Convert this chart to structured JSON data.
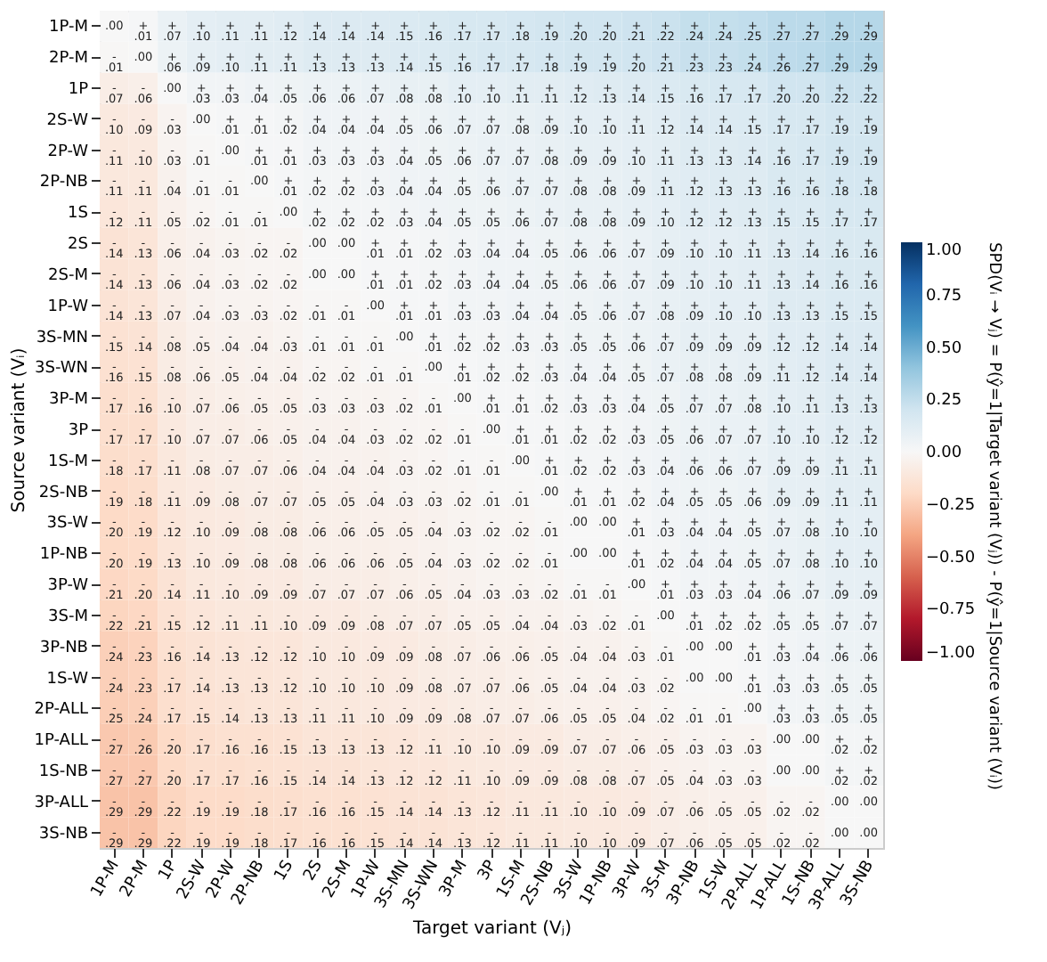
{
  "chart_data": {
    "type": "heatmap",
    "xlabel": "Target variant (Vⱼ)",
    "ylabel": "Source variant (Vᵢ)",
    "clabel": "SPD(Vᵢ → Vⱼ) = P(ŷ=1|Target variant (Vⱼ)) - P(ŷ=1|Source variant (Vᵢ))",
    "categories": [
      "1P-M",
      "2P-M",
      "1P",
      "2S-W",
      "2P-W",
      "2P-NB",
      "1S",
      "2S",
      "2S-M",
      "1P-W",
      "3S-MN",
      "3S-WN",
      "3P-M",
      "3P",
      "1S-M",
      "2S-NB",
      "3S-W",
      "1P-NB",
      "3P-W",
      "3S-M",
      "3P-NB",
      "1S-W",
      "2P-ALL",
      "1P-ALL",
      "1S-NB",
      "3P-ALL",
      "3S-NB"
    ],
    "y_categories": [
      "1P-M",
      "2P-M",
      "1P",
      "2S-W",
      "2P-W",
      "2P-NB",
      "1S",
      "2S",
      "2S-M",
      "1P-W",
      "3S-MN",
      "3S-WN",
      "3P-M",
      "3P",
      "1S-M",
      "2S-NB",
      "3S-W",
      "1P-NB",
      "3P-W",
      "3S-M",
      "3P-NB",
      "1S-W",
      "2P-ALL",
      "1P-ALL",
      "1S-NB",
      "3P-ALL",
      "3S-NB"
    ],
    "cells": [
      [
        0.0,
        0.01,
        0.07,
        0.1,
        0.11,
        0.11,
        0.12,
        0.14,
        0.14,
        0.14,
        0.15,
        0.16,
        0.17,
        0.17,
        0.18,
        0.19,
        0.2,
        0.2,
        0.21,
        0.22,
        0.24,
        0.24,
        0.25,
        0.27,
        0.27,
        0.29,
        0.29
      ],
      [
        -0.01,
        0.0,
        0.06,
        0.09,
        0.1,
        0.11,
        0.11,
        0.13,
        0.13,
        0.13,
        0.14,
        0.15,
        0.16,
        0.17,
        0.17,
        0.18,
        0.19,
        0.19,
        0.2,
        0.21,
        0.23,
        0.23,
        0.24,
        0.26,
        0.27,
        0.29,
        0.29
      ],
      [
        -0.07,
        -0.06,
        0.0,
        0.03,
        0.03,
        0.04,
        0.05,
        0.06,
        0.06,
        0.07,
        0.08,
        0.08,
        0.1,
        0.1,
        0.11,
        0.11,
        0.12,
        0.13,
        0.14,
        0.15,
        0.16,
        0.17,
        0.17,
        0.2,
        0.2,
        0.22,
        0.22
      ],
      [
        -0.1,
        -0.09,
        -0.03,
        0.0,
        0.01,
        0.01,
        0.02,
        0.04,
        0.04,
        0.04,
        0.05,
        0.06,
        0.07,
        0.07,
        0.08,
        0.09,
        0.1,
        0.1,
        0.11,
        0.12,
        0.14,
        0.14,
        0.15,
        0.17,
        0.17,
        0.19,
        0.19
      ],
      [
        -0.11,
        -0.1,
        -0.03,
        -0.01,
        0.0,
        0.01,
        0.01,
        0.03,
        0.03,
        0.03,
        0.04,
        0.05,
        0.06,
        0.07,
        0.07,
        0.08,
        0.09,
        0.09,
        0.1,
        0.11,
        0.13,
        0.13,
        0.14,
        0.16,
        0.17,
        0.19,
        0.19
      ],
      [
        -0.11,
        -0.11,
        -0.04,
        -0.01,
        -0.01,
        0.0,
        0.01,
        0.02,
        0.02,
        0.03,
        0.04,
        0.04,
        0.05,
        0.06,
        0.07,
        0.07,
        0.08,
        0.08,
        0.09,
        0.11,
        0.12,
        0.13,
        0.13,
        0.16,
        0.16,
        0.18,
        0.18
      ],
      [
        -0.12,
        -0.11,
        -0.05,
        -0.02,
        -0.01,
        -0.01,
        0.0,
        0.02,
        0.02,
        0.02,
        0.03,
        0.04,
        0.05,
        0.05,
        0.06,
        0.07,
        0.08,
        0.08,
        0.09,
        0.1,
        0.12,
        0.12,
        0.13,
        0.15,
        0.15,
        0.17,
        0.17
      ],
      [
        -0.14,
        -0.13,
        -0.06,
        -0.04,
        -0.03,
        -0.02,
        -0.02,
        0.0,
        0.0,
        0.01,
        0.01,
        0.02,
        0.03,
        0.04,
        0.04,
        0.05,
        0.06,
        0.06,
        0.07,
        0.09,
        0.1,
        0.1,
        0.11,
        0.13,
        0.14,
        0.16,
        0.16
      ],
      [
        -0.14,
        -0.13,
        -0.06,
        -0.04,
        -0.03,
        -0.02,
        -0.02,
        0.0,
        0.0,
        0.01,
        0.01,
        0.02,
        0.03,
        0.04,
        0.04,
        0.05,
        0.06,
        0.06,
        0.07,
        0.09,
        0.1,
        0.1,
        0.11,
        0.13,
        0.14,
        0.16,
        0.16
      ],
      [
        -0.14,
        -0.13,
        -0.07,
        -0.04,
        -0.03,
        -0.03,
        -0.02,
        -0.01,
        -0.01,
        0.0,
        0.01,
        0.01,
        0.03,
        0.03,
        0.04,
        0.04,
        0.05,
        0.06,
        0.07,
        0.08,
        0.09,
        0.1,
        0.1,
        0.13,
        0.13,
        0.15,
        0.15
      ],
      [
        -0.15,
        -0.14,
        -0.08,
        -0.05,
        -0.04,
        -0.04,
        -0.03,
        -0.01,
        -0.01,
        -0.01,
        0.0,
        0.01,
        0.02,
        0.02,
        0.03,
        0.03,
        0.05,
        0.05,
        0.06,
        0.07,
        0.09,
        0.09,
        0.09,
        0.12,
        0.12,
        0.14,
        0.14
      ],
      [
        -0.16,
        -0.15,
        -0.08,
        -0.06,
        -0.05,
        -0.04,
        -0.04,
        -0.02,
        -0.02,
        -0.01,
        -0.01,
        0.0,
        0.01,
        0.02,
        0.02,
        0.03,
        0.04,
        0.04,
        0.05,
        0.07,
        0.08,
        0.08,
        0.09,
        0.11,
        0.12,
        0.14,
        0.14
      ],
      [
        -0.17,
        -0.16,
        -0.1,
        -0.07,
        -0.06,
        -0.05,
        -0.05,
        -0.03,
        -0.03,
        -0.03,
        -0.02,
        -0.01,
        0.0,
        0.01,
        0.01,
        0.02,
        0.03,
        0.03,
        0.04,
        0.05,
        0.07,
        0.07,
        0.08,
        0.1,
        0.11,
        0.13,
        0.13
      ],
      [
        -0.17,
        -0.17,
        -0.1,
        -0.07,
        -0.07,
        -0.06,
        -0.05,
        -0.04,
        -0.04,
        -0.03,
        -0.02,
        -0.02,
        -0.01,
        0.0,
        0.01,
        0.01,
        0.02,
        0.02,
        0.03,
        0.05,
        0.06,
        0.07,
        0.07,
        0.1,
        0.1,
        0.12,
        0.12
      ],
      [
        -0.18,
        -0.17,
        -0.11,
        -0.08,
        -0.07,
        -0.07,
        -0.06,
        -0.04,
        -0.04,
        -0.04,
        -0.03,
        -0.02,
        -0.01,
        -0.01,
        0.0,
        0.01,
        0.02,
        0.02,
        0.03,
        0.04,
        0.06,
        0.06,
        0.07,
        0.09,
        0.09,
        0.11,
        0.11
      ],
      [
        -0.19,
        -0.18,
        -0.11,
        -0.09,
        -0.08,
        -0.07,
        -0.07,
        -0.05,
        -0.05,
        -0.04,
        -0.03,
        -0.03,
        -0.02,
        -0.01,
        -0.01,
        0.0,
        0.01,
        0.01,
        0.02,
        0.04,
        0.05,
        0.05,
        0.06,
        0.09,
        0.09,
        0.11,
        0.11
      ],
      [
        -0.2,
        -0.19,
        -0.12,
        -0.1,
        -0.09,
        -0.08,
        -0.08,
        -0.06,
        -0.06,
        -0.05,
        -0.05,
        -0.04,
        -0.03,
        -0.02,
        -0.02,
        -0.01,
        0.0,
        0.0,
        0.01,
        0.03,
        0.04,
        0.04,
        0.05,
        0.07,
        0.08,
        0.1,
        0.1
      ],
      [
        -0.2,
        -0.19,
        -0.13,
        -0.1,
        -0.09,
        -0.08,
        -0.08,
        -0.06,
        -0.06,
        -0.06,
        -0.05,
        -0.04,
        -0.03,
        -0.02,
        -0.02,
        -0.01,
        0.0,
        0.0,
        0.01,
        0.02,
        0.04,
        0.04,
        0.05,
        0.07,
        0.08,
        0.1,
        0.1
      ],
      [
        -0.21,
        -0.2,
        -0.14,
        -0.11,
        -0.1,
        -0.09,
        -0.09,
        -0.07,
        -0.07,
        -0.07,
        -0.06,
        -0.05,
        -0.04,
        -0.03,
        -0.03,
        -0.02,
        -0.01,
        -0.01,
        0.0,
        0.01,
        0.03,
        0.03,
        0.04,
        0.06,
        0.07,
        0.09,
        0.09
      ],
      [
        -0.22,
        -0.21,
        -0.15,
        -0.12,
        -0.11,
        -0.11,
        -0.1,
        -0.09,
        -0.09,
        -0.08,
        -0.07,
        -0.07,
        -0.05,
        -0.05,
        -0.04,
        -0.04,
        -0.03,
        -0.02,
        -0.01,
        0.0,
        0.01,
        0.02,
        0.02,
        0.05,
        0.05,
        0.07,
        0.07
      ],
      [
        -0.24,
        -0.23,
        -0.16,
        -0.14,
        -0.13,
        -0.12,
        -0.12,
        -0.1,
        -0.1,
        -0.09,
        -0.09,
        -0.08,
        -0.07,
        -0.06,
        -0.06,
        -0.05,
        -0.04,
        -0.04,
        -0.03,
        -0.01,
        0.0,
        0.0,
        0.01,
        0.03,
        0.04,
        0.06,
        0.06
      ],
      [
        -0.24,
        -0.23,
        -0.17,
        -0.14,
        -0.13,
        -0.13,
        -0.12,
        -0.1,
        -0.1,
        -0.1,
        -0.09,
        -0.08,
        -0.07,
        -0.07,
        -0.06,
        -0.05,
        -0.04,
        -0.04,
        -0.03,
        -0.02,
        0.0,
        0.0,
        0.01,
        0.03,
        0.03,
        0.05,
        0.05
      ],
      [
        -0.25,
        -0.24,
        -0.17,
        -0.15,
        -0.14,
        -0.13,
        -0.13,
        -0.11,
        -0.11,
        -0.1,
        -0.09,
        -0.09,
        -0.08,
        -0.07,
        -0.07,
        -0.06,
        -0.05,
        -0.05,
        -0.04,
        -0.02,
        -0.01,
        -0.01,
        0.0,
        0.03,
        0.03,
        0.05,
        0.05
      ],
      [
        -0.27,
        -0.26,
        -0.2,
        -0.17,
        -0.16,
        -0.16,
        -0.15,
        -0.13,
        -0.13,
        -0.13,
        -0.12,
        -0.11,
        -0.1,
        -0.1,
        -0.09,
        -0.09,
        -0.07,
        -0.07,
        -0.06,
        -0.05,
        -0.03,
        -0.03,
        -0.03,
        0.0,
        0.0,
        0.02,
        0.02
      ],
      [
        -0.27,
        -0.27,
        -0.2,
        -0.17,
        -0.17,
        -0.16,
        -0.15,
        -0.14,
        -0.14,
        -0.13,
        -0.12,
        -0.12,
        -0.11,
        -0.1,
        -0.09,
        -0.09,
        -0.08,
        -0.08,
        -0.07,
        -0.05,
        -0.04,
        -0.03,
        -0.03,
        0.0,
        0.0,
        0.02,
        0.02
      ],
      [
        -0.29,
        -0.29,
        -0.22,
        -0.19,
        -0.19,
        -0.18,
        -0.17,
        -0.16,
        -0.16,
        -0.15,
        -0.14,
        -0.14,
        -0.13,
        -0.12,
        -0.11,
        -0.11,
        -0.1,
        -0.1,
        -0.09,
        -0.07,
        -0.06,
        -0.05,
        -0.05,
        -0.02,
        -0.02,
        0.0,
        0.0
      ],
      [
        -0.29,
        -0.29,
        -0.22,
        -0.19,
        -0.19,
        -0.18,
        -0.17,
        -0.16,
        -0.16,
        -0.15,
        -0.14,
        -0.14,
        -0.13,
        -0.12,
        -0.11,
        -0.11,
        -0.1,
        -0.1,
        -0.09,
        -0.07,
        -0.06,
        -0.05,
        -0.05,
        -0.02,
        -0.02,
        0.0,
        0.0
      ]
    ],
    "cell_labels": [
      [
        ".00",
        "+.01",
        "+.07",
        "+.10",
        "+.11",
        "+.11",
        "+.12",
        "+.14",
        "+.14",
        "+.14",
        "+.15",
        "+.16",
        "+.17",
        "+.17",
        "+.18",
        "+.19",
        "+.20",
        "+.20",
        "+.21",
        "+.22",
        "+.24",
        "+.24",
        "+.25",
        "+.27",
        "+.27",
        "+.29",
        "+.29"
      ],
      [
        "-.01",
        ".00",
        "+.06",
        "+.09",
        "+.10",
        "+.11",
        "+.11",
        "+.13",
        "+.13",
        "+.13",
        "+.14",
        "+.15",
        "+.16",
        "+.17",
        "+.17",
        "+.18",
        "+.19",
        "+.19",
        "+.20",
        "+.21",
        "+.23",
        "+.23",
        "+.24",
        "+.26",
        "+.27",
        "+.29",
        "+.29"
      ],
      [
        "-.07",
        "-.06",
        ".00",
        "+.03",
        "+.03",
        "+.04",
        "+.05",
        "+.06",
        "+.06",
        "+.07",
        "+.08",
        "+.08",
        "+.10",
        "+.10",
        "+.11",
        "+.11",
        "+.12",
        "+.13",
        "+.14",
        "+.15",
        "+.16",
        "+.17",
        "+.17",
        "+.20",
        "+.20",
        "+.22",
        "+.22"
      ],
      [
        "-.10",
        "-.09",
        "-.03",
        ".00",
        "+.01",
        "+.01",
        "+.02",
        "+.04",
        "+.04",
        "+.04",
        "+.05",
        "+.06",
        "+.07",
        "+.07",
        "+.08",
        "+.09",
        "+.10",
        "+.10",
        "+.11",
        "+.12",
        "+.14",
        "+.14",
        "+.15",
        "+.17",
        "+.17",
        "+.19",
        "+.19"
      ],
      [
        "-.11",
        "-.10",
        "-.03",
        "-.01",
        ".00",
        "+.01",
        "+.01",
        "+.03",
        "+.03",
        "+.03",
        "+.04",
        "+.05",
        "+.06",
        "+.07",
        "+.07",
        "+.08",
        "+.09",
        "+.09",
        "+.10",
        "+.11",
        "+.13",
        "+.13",
        "+.14",
        "+.16",
        "+.17",
        "+.19",
        "+.19"
      ],
      [
        "-.11",
        "-.11",
        "-.04",
        "-.01",
        "-.01",
        ".00",
        "+.01",
        "+.02",
        "+.02",
        "+.03",
        "+.04",
        "+.04",
        "+.05",
        "+.06",
        "+.07",
        "+.07",
        "+.08",
        "+.08",
        "+.09",
        "+.11",
        "+.12",
        "+.13",
        "+.13",
        "+.16",
        "+.16",
        "+.18",
        "+.18"
      ],
      [
        "-.12",
        "-.11",
        "-.05",
        "-.02",
        "-.01",
        "-.01",
        ".00",
        "+.02",
        "+.02",
        "+.02",
        "+.03",
        "+.04",
        "+.05",
        "+.05",
        "+.06",
        "+.07",
        "+.08",
        "+.08",
        "+.09",
        "+.10",
        "+.12",
        "+.12",
        "+.13",
        "+.15",
        "+.15",
        "+.17",
        "+.17"
      ],
      [
        "-.14",
        "-.13",
        "-.06",
        "-.04",
        "-.03",
        "-.02",
        "-.02",
        ".00",
        ".00",
        "+.01",
        "+.01",
        "+.02",
        "+.03",
        "+.04",
        "+.04",
        "+.05",
        "+.06",
        "+.06",
        "+.07",
        "+.09",
        "+.10",
        "+.10",
        "+.11",
        "+.13",
        "+.14",
        "+.16",
        "+.16"
      ],
      [
        "-.14",
        "-.13",
        "-.06",
        "-.04",
        "-.03",
        "-.02",
        "-.02",
        ".00",
        ".00",
        "+.01",
        "+.01",
        "+.02",
        "+.03",
        "+.04",
        "+.04",
        "+.05",
        "+.06",
        "+.06",
        "+.07",
        "+.09",
        "+.10",
        "+.10",
        "+.11",
        "+.13",
        "+.14",
        "+.16",
        "+.16"
      ],
      [
        "-.14",
        "-.13",
        "-.07",
        "-.04",
        "-.03",
        "-.03",
        "-.02",
        "-.01",
        "-.01",
        ".00",
        "+.01",
        "+.01",
        "+.03",
        "+.03",
        "+.04",
        "+.04",
        "+.05",
        "+.06",
        "+.07",
        "+.08",
        "+.09",
        "+.10",
        "+.10",
        "+.13",
        "+.13",
        "+.15",
        "+.15"
      ],
      [
        "-.15",
        "-.14",
        "-.08",
        "-.05",
        "-.04",
        "-.04",
        "-.03",
        "-.01",
        "-.01",
        "-.01",
        ".00",
        "+.01",
        "+.02",
        "+.02",
        "+.03",
        "+.03",
        "+.05",
        "+.05",
        "+.06",
        "+.07",
        "+.09",
        "+.09",
        "+.09",
        "+.12",
        "+.12",
        "+.14",
        "+.14"
      ],
      [
        "-.16",
        "-.15",
        "-.08",
        "-.06",
        "-.05",
        "-.04",
        "-.04",
        "-.02",
        "-.02",
        "-.01",
        "-.01",
        ".00",
        "+.01",
        "+.02",
        "+.02",
        "+.03",
        "+.04",
        "+.04",
        "+.05",
        "+.07",
        "+.08",
        "+.08",
        "+.09",
        "+.11",
        "+.12",
        "+.14",
        "+.14"
      ],
      [
        "-.17",
        "-.16",
        "-.10",
        "-.07",
        "-.06",
        "-.05",
        "-.05",
        "-.03",
        "-.03",
        "-.03",
        "-.02",
        "-.01",
        ".00",
        "+.01",
        "+.01",
        "+.02",
        "+.03",
        "+.03",
        "+.04",
        "+.05",
        "+.07",
        "+.07",
        "+.08",
        "+.10",
        "+.11",
        "+.13",
        "+.13"
      ],
      [
        "-.17",
        "-.17",
        "-.10",
        "-.07",
        "-.07",
        "-.06",
        "-.05",
        "-.04",
        "-.04",
        "-.03",
        "-.02",
        "-.02",
        "-.01",
        ".00",
        "+.01",
        "+.01",
        "+.02",
        "+.02",
        "+.03",
        "+.05",
        "+.06",
        "+.07",
        "+.07",
        "+.10",
        "+.10",
        "+.12",
        "+.12"
      ],
      [
        "-.18",
        "-.17",
        "-.11",
        "-.08",
        "-.07",
        "-.07",
        "-.06",
        "-.04",
        "-.04",
        "-.04",
        "-.03",
        "-.02",
        "-.01",
        "-.01",
        ".00",
        "+.01",
        "+.02",
        "+.02",
        "+.03",
        "+.04",
        "+.06",
        "+.06",
        "+.07",
        "+.09",
        "+.09",
        "+.11",
        "+.11"
      ],
      [
        "-.19",
        "-.18",
        "-.11",
        "-.09",
        "-.08",
        "-.07",
        "-.07",
        "-.05",
        "-.05",
        "-.04",
        "-.03",
        "-.03",
        "-.02",
        "-.01",
        "-.01",
        ".00",
        "+.01",
        "+.01",
        "+.02",
        "+.04",
        "+.05",
        "+.05",
        "+.06",
        "+.09",
        "+.09",
        "+.11",
        "+.11"
      ],
      [
        "-.20",
        "-.19",
        "-.12",
        "-.10",
        "-.09",
        "-.08",
        "-.08",
        "-.06",
        "-.06",
        "-.05",
        "-.05",
        "-.04",
        "-.03",
        "-.02",
        "-.02",
        "-.01",
        ".00",
        ".00",
        "+.01",
        "+.03",
        "+.04",
        "+.04",
        "+.05",
        "+.07",
        "+.08",
        "+.10",
        "+.10"
      ],
      [
        "-.20",
        "-.19",
        "-.13",
        "-.10",
        "-.09",
        "-.08",
        "-.08",
        "-.06",
        "-.06",
        "-.06",
        "-.05",
        "-.04",
        "-.03",
        "-.02",
        "-.02",
        "-.01",
        ".00",
        ".00",
        "+.01",
        "+.02",
        "+.04",
        "+.04",
        "+.05",
        "+.07",
        "+.08",
        "+.10",
        "+.10"
      ],
      [
        "-.21",
        "-.20",
        "-.14",
        "-.11",
        "-.10",
        "-.09",
        "-.09",
        "-.07",
        "-.07",
        "-.07",
        "-.06",
        "-.05",
        "-.04",
        "-.03",
        "-.03",
        "-.02",
        "-.01",
        "-.01",
        ".00",
        "+.01",
        "+.03",
        "+.03",
        "+.04",
        "+.06",
        "+.07",
        "+.09",
        "+.09"
      ],
      [
        "-.22",
        "-.21",
        "-.15",
        "-.12",
        "-.11",
        "-.11",
        "-.10",
        "-.09",
        "-.09",
        "-.08",
        "-.07",
        "-.07",
        "-.05",
        "-.05",
        "-.04",
        "-.04",
        "-.03",
        "-.02",
        "-.01",
        ".00",
        "+.01",
        "+.02",
        "+.02",
        "+.05",
        "+.05",
        "+.07",
        "+.07"
      ],
      [
        "-.24",
        "-.23",
        "-.16",
        "-.14",
        "-.13",
        "-.12",
        "-.12",
        "-.10",
        "-.10",
        "-.09",
        "-.09",
        "-.08",
        "-.07",
        "-.06",
        "-.06",
        "-.05",
        "-.04",
        "-.04",
        "-.03",
        "-.01",
        ".00",
        ".00",
        "+.01",
        "+.03",
        "+.04",
        "+.06",
        "+.06"
      ],
      [
        "-.24",
        "-.23",
        "-.17",
        "-.14",
        "-.13",
        "-.13",
        "-.12",
        "-.10",
        "-.10",
        "-.10",
        "-.09",
        "-.08",
        "-.07",
        "-.07",
        "-.06",
        "-.05",
        "-.04",
        "-.04",
        "-.03",
        "-.02",
        ".00",
        ".00",
        "+.01",
        "+.03",
        "+.03",
        "+.05",
        "+.05"
      ],
      [
        "-.25",
        "-.24",
        "-.17",
        "-.15",
        "-.14",
        "-.13",
        "-.13",
        "-.11",
        "-.11",
        "-.10",
        "-.09",
        "-.09",
        "-.08",
        "-.07",
        "-.07",
        "-.06",
        "-.05",
        "-.05",
        "-.04",
        "-.02",
        "-.01",
        "-.01",
        ".00",
        "+.03",
        "+.03",
        "+.05",
        "+.05"
      ],
      [
        "-.27",
        "-.26",
        "-.20",
        "-.17",
        "-.16",
        "-.16",
        "-.15",
        "-.13",
        "-.13",
        "-.13",
        "-.12",
        "-.11",
        "-.10",
        "-.10",
        "-.09",
        "-.09",
        "-.07",
        "-.07",
        "-.06",
        "-.05",
        "-.03",
        "-.03",
        "-.03",
        ".00",
        ".00",
        "+.02",
        "+.02"
      ],
      [
        "-.27",
        "-.27",
        "-.20",
        "-.17",
        "-.17",
        "-.16",
        "-.15",
        "-.14",
        "-.14",
        "-.13",
        "-.12",
        "-.12",
        "-.11",
        "-.10",
        "-.09",
        "-.09",
        "-.08",
        "-.08",
        "-.07",
        "-.05",
        "-.04",
        "-.03",
        "-.03",
        ".00",
        ".00",
        "+.02",
        "+.02"
      ],
      [
        "-.29",
        "-.29",
        "-.22",
        "-.19",
        "-.19",
        "-.18",
        "-.17",
        "-.16",
        "-.16",
        "-.15",
        "-.14",
        "-.14",
        "-.13",
        "-.12",
        "-.11",
        "-.11",
        "-.10",
        "-.10",
        "-.09",
        "-.07",
        "-.06",
        "-.05",
        "-.05",
        "-.02",
        "-.02",
        ".00",
        ".00"
      ],
      [
        "-.29",
        "-.29",
        "-.22",
        "-.19",
        "-.19",
        "-.18",
        "-.17",
        "-.16",
        "-.16",
        "-.15",
        "-.14",
        "-.14",
        "-.13",
        "-.12",
        "-.11",
        "-.11",
        "-.10",
        "-.10",
        "-.09",
        "-.07",
        "-.06",
        "-.05",
        "-.05",
        "-.02",
        "-.02",
        ".00",
        ".00"
      ]
    ],
    "clim": [
      -1,
      1
    ],
    "cticks": [
      {
        "value": -1,
        "label": "−1.00"
      },
      {
        "value": -0.75,
        "label": "−0.75"
      },
      {
        "value": -0.5,
        "label": "−0.50"
      },
      {
        "value": -0.25,
        "label": "−0.25"
      },
      {
        "value": 0,
        "label": "0.00"
      },
      {
        "value": 0.25,
        "label": "0.25"
      },
      {
        "value": 0.5,
        "label": "0.50"
      },
      {
        "value": 0.75,
        "label": "0.75"
      },
      {
        "value": 1,
        "label": "1.00"
      }
    ]
  }
}
